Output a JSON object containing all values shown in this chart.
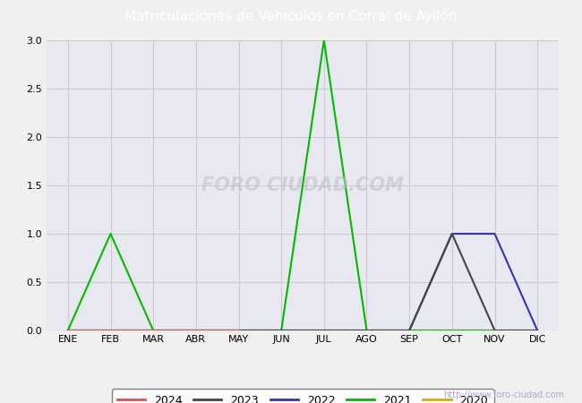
{
  "title": "Matriculaciones de Vehiculos en Corral de Ayllón",
  "title_bg_color": "#4a6fa5",
  "title_text_color": "#ffffff",
  "months": [
    "ENE",
    "FEB",
    "MAR",
    "ABR",
    "MAY",
    "JUN",
    "JUL",
    "AGO",
    "SEP",
    "OCT",
    "NOV",
    "DIC"
  ],
  "series": {
    "2024": {
      "color": "#e05050",
      "values": [
        0,
        0,
        0,
        0,
        0,
        null,
        null,
        null,
        null,
        null,
        null,
        null
      ]
    },
    "2023": {
      "color": "#444444",
      "values": [
        0,
        0,
        0,
        0,
        0,
        0,
        0,
        0,
        0,
        1,
        0,
        0
      ]
    },
    "2022": {
      "color": "#3333bb",
      "values": [
        0,
        0,
        0,
        0,
        0,
        0,
        0,
        0,
        0,
        1,
        1,
        0
      ]
    },
    "2021": {
      "color": "#00bb00",
      "values": [
        0,
        1,
        0,
        0,
        0,
        0,
        3,
        0,
        0,
        0,
        0,
        0
      ]
    },
    "2020": {
      "color": "#ddaa00",
      "values": [
        0,
        0,
        0,
        0,
        0,
        0,
        0,
        0,
        0,
        0,
        0,
        0
      ]
    }
  },
  "ylim": [
    0,
    3.0
  ],
  "yticks": [
    0.0,
    0.5,
    1.0,
    1.5,
    2.0,
    2.5,
    3.0
  ],
  "grid_color": "#cccccc",
  "plot_bg_color": "#e8e8f0",
  "fig_bg_color": "#f0f0f0",
  "legend_order": [
    "2024",
    "2023",
    "2022",
    "2021",
    "2020"
  ],
  "watermark_text": "http://www.foro-ciudad.com",
  "watermark_color": "#aaaacc",
  "center_watermark": "FORO CIUDAD.COM"
}
